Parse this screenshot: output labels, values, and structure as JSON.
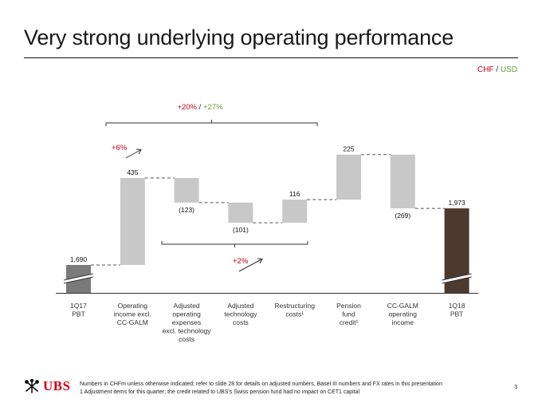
{
  "slide": {
    "title": "Very strong underlying operating performance",
    "currency": {
      "chf": "CHF",
      "sep": "/",
      "usd": "USD"
    },
    "logo_text": "UBS",
    "footnote_line1": "Numbers in CHFm unless otherwise indicated; refer to slide 28 for details on adjusted numbers, Basel III numbers and FX rates in this presentation",
    "footnote_line2": "1 Adjustment items for this quarter; the credit related to UBS's Swiss pension fund had no impact on CET1 capital",
    "page_number": "3"
  },
  "chart_data": {
    "type": "bar",
    "subtype": "waterfall",
    "categories": [
      [
        "1Q17",
        "PBT"
      ],
      [
        "Operating",
        "income excl.",
        "CC-GALM"
      ],
      [
        "Adjusted",
        "operating",
        "expenses",
        "excl. technology",
        "costs"
      ],
      [
        "Adjusted",
        "technology",
        "costs"
      ],
      [
        "Restructuring",
        "costs¹"
      ],
      [
        "Pension",
        "fund",
        "credit¹"
      ],
      [
        "CC-GALM",
        "operating",
        "income"
      ],
      [
        "1Q18",
        "PBT"
      ]
    ],
    "values": [
      1690,
      435,
      -123,
      -101,
      116,
      225,
      -269,
      1973
    ],
    "value_labels": [
      "1,690",
      "435",
      "(123)",
      "(101)",
      "116",
      "225",
      "(269)",
      "1,973"
    ],
    "bar_kinds": [
      "total",
      "delta",
      "delta",
      "delta",
      "delta",
      "delta",
      "delta",
      "total"
    ],
    "colors": {
      "start_total": "#7a7a7a",
      "delta": "#c8c8c8",
      "end_total": "#4d3a2e",
      "red": "#c0001a",
      "green": "#6a9a36"
    },
    "axis_break": true,
    "annotations": {
      "overall_red": "+20%",
      "overall_sep": "/",
      "overall_green": "+27%",
      "operating_income": "+6%",
      "costs": "+2%"
    }
  }
}
